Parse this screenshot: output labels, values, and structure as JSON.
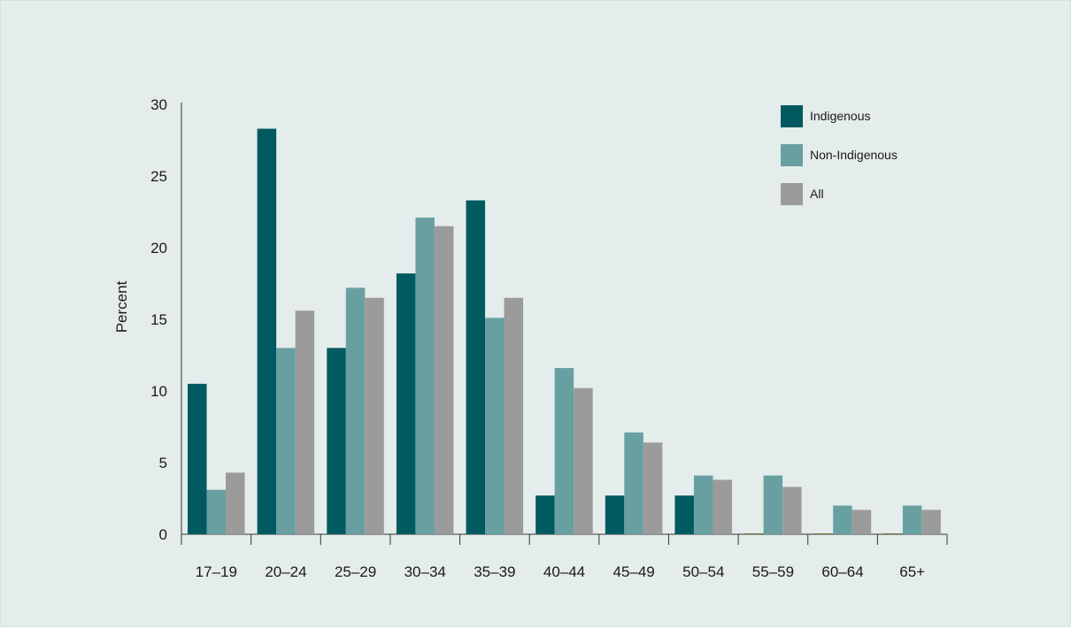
{
  "chart_data": {
    "type": "bar",
    "title": "",
    "xlabel": "",
    "ylabel": "Percent",
    "ylim": [
      0,
      30
    ],
    "yticks": [
      "0",
      "5",
      "10",
      "15",
      "20",
      "25",
      "30"
    ],
    "grid": false,
    "legend_position": "top-right",
    "categories": [
      "17–19",
      "20–24",
      "25–29",
      "30–34",
      "35–39",
      "40–44",
      "45–49",
      "50–54",
      "55–59",
      "60–64",
      "65+"
    ],
    "series": [
      {
        "name": "Indigenous",
        "color": "#005a5f",
        "values": [
          10.5,
          28.3,
          13.0,
          18.2,
          23.3,
          2.7,
          2.7,
          2.7,
          0,
          0,
          0
        ]
      },
      {
        "name": "Non-Indigenous",
        "color": "#68a0a2",
        "values": [
          3.1,
          13.0,
          17.2,
          22.1,
          15.1,
          11.6,
          7.1,
          4.1,
          4.1,
          2.0,
          2.0
        ]
      },
      {
        "name": "All",
        "color": "#9b9b9b",
        "values": [
          4.3,
          15.6,
          16.5,
          21.5,
          16.5,
          10.2,
          6.4,
          3.8,
          3.3,
          1.7,
          1.7
        ]
      }
    ]
  }
}
